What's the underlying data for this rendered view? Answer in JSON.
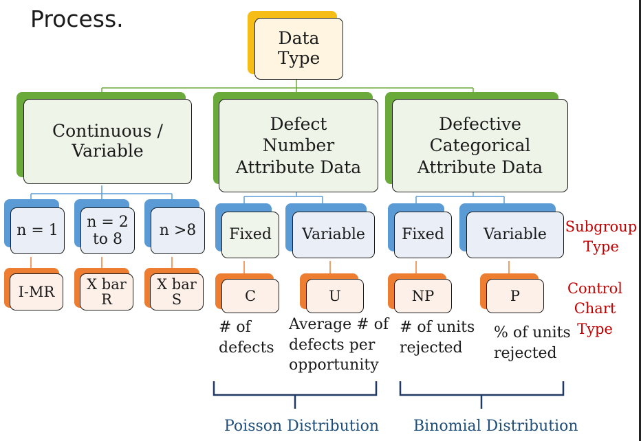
{
  "title": "Process.",
  "root": "Data\nType",
  "categories": {
    "continuous": "Continuous /\nVariable",
    "defect": "Defect\nNumber\nAttribute Data",
    "defective": "Defective\nCategorical\nAttribute Data"
  },
  "subgroups": {
    "n1": "n = 1",
    "n2to8": "n = 2\nto 8",
    "ngt8": "n >8",
    "defect_fixed": "Fixed",
    "defect_variable": "Variable",
    "defective_fixed": "Fixed",
    "defective_variable": "Variable"
  },
  "charts": {
    "imr": "I-MR",
    "xbar_r": "X bar\nR",
    "xbar_s": "X bar\nS",
    "c": "C",
    "u": "U",
    "np": "NP",
    "p": "P"
  },
  "descriptions": {
    "c": "# of\ndefects",
    "u": "Average # of\ndefects per\nopportunity",
    "np": "# of units\nrejected",
    "p": "% of units\nrejected"
  },
  "labels": {
    "subgroup_type": "Subgroup\nType",
    "control_chart_type": "Control\nChart\nType"
  },
  "distributions": {
    "poisson": "Poisson Distribution",
    "binomial": "Binomial Distribution"
  },
  "colors": {
    "green": "#6aaa3a",
    "yellow": "#f6bd16",
    "blue": "#5b9bd5",
    "orange": "#ed7d31",
    "red_label": "#c00000",
    "distribution_text": "#1f4e79"
  }
}
